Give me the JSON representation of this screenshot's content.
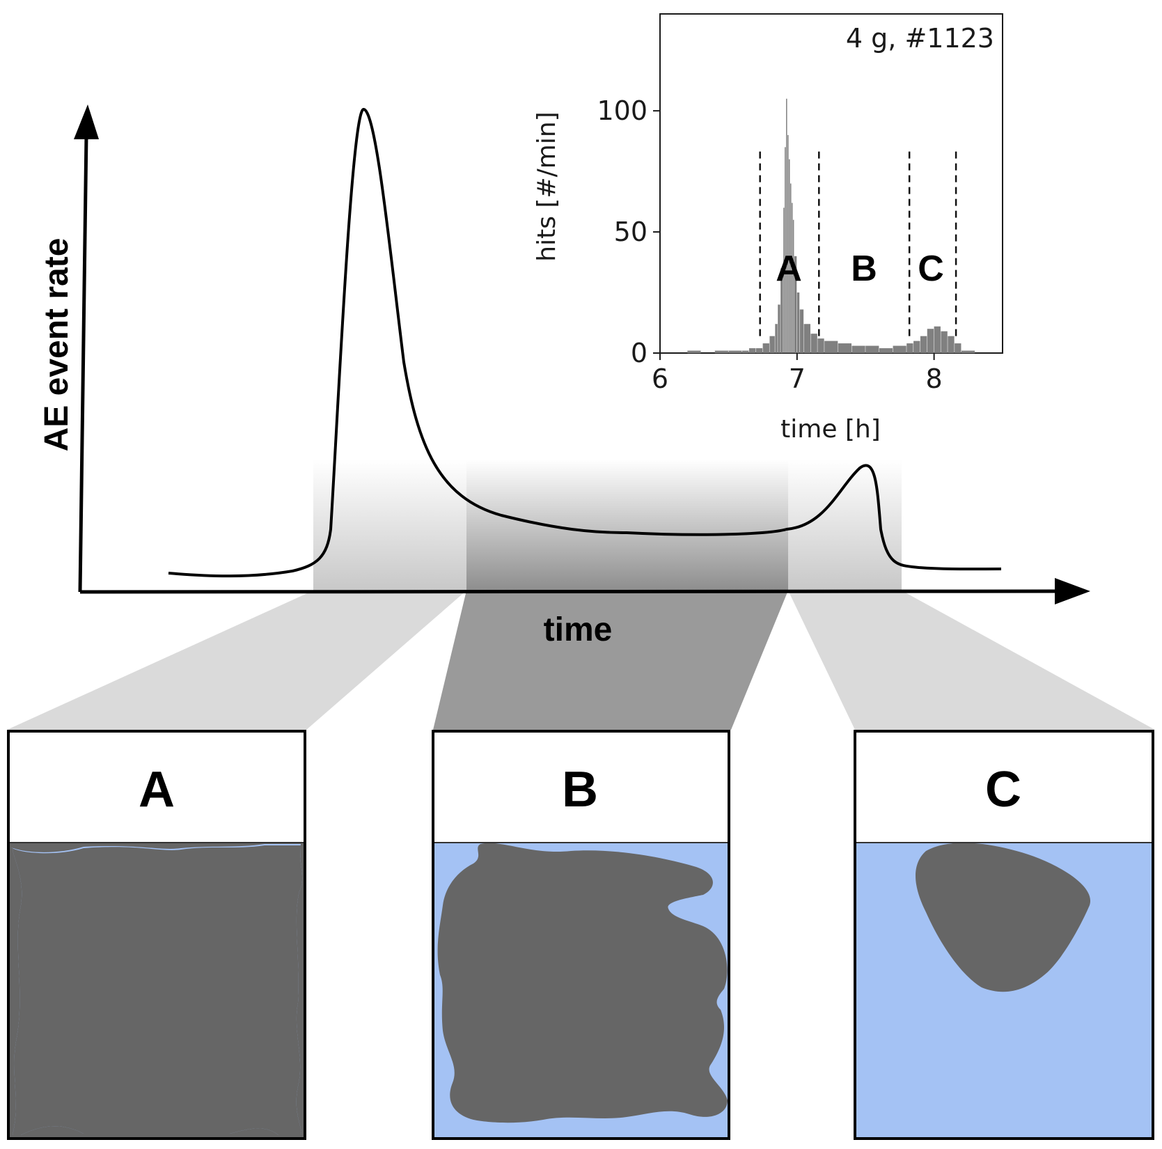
{
  "main_plot": {
    "ylabel": "AE event rate",
    "xlabel": "time"
  },
  "inset": {
    "title": "4 g, #1123",
    "ylabel": "hits [#/min]",
    "xlabel": "time [h]",
    "xticks": [
      "6",
      "7",
      "8"
    ],
    "yticks": [
      "0",
      "50",
      "100"
    ],
    "region_labels": [
      "A",
      "B",
      "C"
    ]
  },
  "panels": [
    {
      "label": "A"
    },
    {
      "label": "B"
    },
    {
      "label": "C"
    }
  ],
  "colors": {
    "liquid": "#a4c2f4",
    "solid": "#666666",
    "funnel_light": "#dadada",
    "funnel_dark": "#9a9a9a",
    "histogram": "#808080"
  },
  "chart_data": {
    "type": "bar",
    "title": "4 g, #1123",
    "xlabel": "time [h]",
    "ylabel": "hits [#/min]",
    "xlim": [
      6,
      8.5
    ],
    "ylim": [
      0,
      140
    ],
    "x": [
      6.0,
      6.1,
      6.2,
      6.3,
      6.4,
      6.5,
      6.6,
      6.65,
      6.7,
      6.75,
      6.8,
      6.84,
      6.86,
      6.88,
      6.9,
      6.91,
      6.92,
      6.93,
      6.94,
      6.95,
      6.96,
      6.97,
      6.98,
      7.0,
      7.02,
      7.05,
      7.1,
      7.15,
      7.2,
      7.3,
      7.4,
      7.5,
      7.6,
      7.7,
      7.8,
      7.85,
      7.9,
      7.95,
      8.0,
      8.05,
      8.1,
      8.15,
      8.2,
      8.3,
      8.4,
      8.5
    ],
    "values": [
      0,
      0,
      1,
      0,
      1,
      1,
      1,
      2,
      2,
      4,
      7,
      12,
      20,
      35,
      60,
      85,
      105,
      90,
      80,
      70,
      62,
      55,
      40,
      25,
      18,
      12,
      8,
      6,
      5,
      4,
      3,
      3,
      2,
      3,
      4,
      5,
      7,
      10,
      11,
      9,
      7,
      4,
      1,
      0,
      0,
      0
    ],
    "region_boundaries": [
      6.73,
      7.16,
      7.82,
      8.16
    ],
    "regions": [
      "A",
      "B",
      "C"
    ]
  }
}
